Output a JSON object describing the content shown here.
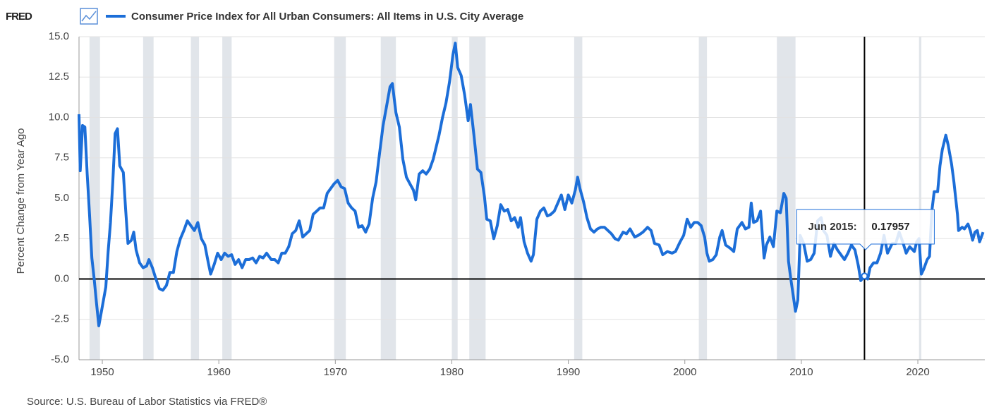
{
  "brand": "FRED",
  "chart_data": {
    "type": "line",
    "title": "Consumer Price Index for All Urban Consumers: All Items in U.S. City Average",
    "y_label": "Percent Change from Year Ago",
    "source": "Source: U.S. Bureau of Labor Statistics via FRED®",
    "xlim": [
      1948.0,
      2025.75
    ],
    "ylim": [
      -5,
      15
    ],
    "xticks": [
      1950,
      1960,
      1970,
      1980,
      1990,
      2000,
      2010,
      2020
    ],
    "yticks": [
      {
        "value": 15,
        "label": "15.0"
      },
      {
        "value": 12.5,
        "label": "12.5"
      },
      {
        "value": 10,
        "label": "10.0"
      },
      {
        "value": 7.5,
        "label": "7.5"
      },
      {
        "value": 5,
        "label": "5.0"
      },
      {
        "value": 2.5,
        "label": "2.5"
      },
      {
        "value": 0,
        "label": "0.0"
      },
      {
        "value": -2.5,
        "label": "-2.5"
      },
      {
        "value": -5,
        "label": "-5.0"
      }
    ],
    "grid": true,
    "recessions": [
      [
        1948.9,
        1949.8
      ],
      [
        1953.5,
        1954.4
      ],
      [
        1957.6,
        1958.3
      ],
      [
        1960.3,
        1961.1
      ],
      [
        1969.9,
        1970.9
      ],
      [
        1973.9,
        1975.2
      ],
      [
        1980.0,
        1980.5
      ],
      [
        1981.5,
        1982.9
      ],
      [
        1990.5,
        1991.2
      ],
      [
        2001.2,
        2001.9
      ],
      [
        2007.9,
        2009.5
      ],
      [
        2020.1,
        2020.3
      ]
    ],
    "tooltip": {
      "label": "Jun 2015:",
      "x": 2015.42,
      "value": 0.17957
    },
    "series": [
      {
        "name": "Consumer Price Index for All Urban Consumers: All Items in U.S. City Average",
        "color": "#1c6ed8",
        "x": [
          1948.0,
          1948.1,
          1948.3,
          1948.5,
          1948.7,
          1948.9,
          1949.1,
          1949.3,
          1949.5,
          1949.7,
          1949.9,
          1950.1,
          1950.3,
          1950.5,
          1950.7,
          1950.9,
          1951.1,
          1951.3,
          1951.5,
          1951.8,
          1952.0,
          1952.2,
          1952.5,
          1952.7,
          1952.9,
          1953.2,
          1953.5,
          1953.8,
          1954.0,
          1954.3,
          1954.6,
          1954.9,
          1955.2,
          1955.5,
          1955.8,
          1956.1,
          1956.4,
          1956.7,
          1957.0,
          1957.3,
          1957.6,
          1957.9,
          1958.2,
          1958.5,
          1958.8,
          1959.1,
          1959.3,
          1959.6,
          1959.9,
          1960.2,
          1960.5,
          1960.8,
          1961.1,
          1961.4,
          1961.7,
          1962.0,
          1962.3,
          1962.6,
          1962.9,
          1963.2,
          1963.5,
          1963.8,
          1964.1,
          1964.5,
          1964.8,
          1965.1,
          1965.4,
          1965.7,
          1966.0,
          1966.3,
          1966.6,
          1966.9,
          1967.2,
          1967.5,
          1967.8,
          1968.1,
          1968.4,
          1968.7,
          1969.0,
          1969.3,
          1969.6,
          1969.9,
          1970.2,
          1970.5,
          1970.8,
          1971.1,
          1971.4,
          1971.7,
          1972.0,
          1972.3,
          1972.6,
          1972.9,
          1973.2,
          1973.5,
          1973.8,
          1974.1,
          1974.4,
          1974.7,
          1974.9,
          1975.2,
          1975.5,
          1975.8,
          1976.1,
          1976.4,
          1976.7,
          1976.9,
          1977.2,
          1977.5,
          1977.8,
          1978.1,
          1978.4,
          1978.7,
          1978.9,
          1979.2,
          1979.5,
          1979.8,
          1980.1,
          1980.3,
          1980.5,
          1980.8,
          1981.1,
          1981.4,
          1981.6,
          1981.9,
          1982.2,
          1982.5,
          1982.8,
          1983.0,
          1983.3,
          1983.6,
          1983.9,
          1984.2,
          1984.5,
          1984.8,
          1985.1,
          1985.4,
          1985.7,
          1985.9,
          1986.2,
          1986.5,
          1986.8,
          1987.0,
          1987.3,
          1987.6,
          1987.9,
          1988.2,
          1988.5,
          1988.8,
          1989.1,
          1989.4,
          1989.7,
          1990.0,
          1990.3,
          1990.6,
          1990.8,
          1991.0,
          1991.3,
          1991.6,
          1991.9,
          1992.2,
          1992.5,
          1992.8,
          1993.1,
          1993.4,
          1993.7,
          1994.0,
          1994.3,
          1994.7,
          1995.0,
          1995.3,
          1995.7,
          1996.0,
          1996.4,
          1996.8,
          1997.1,
          1997.4,
          1997.8,
          1998.1,
          1998.5,
          1998.9,
          1999.2,
          1999.6,
          1999.9,
          2000.2,
          2000.5,
          2000.8,
          2001.1,
          2001.4,
          2001.7,
          2001.9,
          2002.1,
          2002.4,
          2002.7,
          2003.0,
          2003.2,
          2003.5,
          2003.9,
          2004.2,
          2004.5,
          2004.9,
          2005.2,
          2005.5,
          2005.7,
          2005.9,
          2006.2,
          2006.5,
          2006.8,
          2007.0,
          2007.3,
          2007.6,
          2007.9,
          2008.2,
          2008.5,
          2008.7,
          2008.9,
          2009.1,
          2009.3,
          2009.5,
          2009.7,
          2009.9,
          2010.2,
          2010.5,
          2010.8,
          2011.1,
          2011.4,
          2011.7,
          2011.9,
          2012.2,
          2012.5,
          2012.8,
          2013.1,
          2013.4,
          2013.7,
          2014.0,
          2014.3,
          2014.6,
          2014.9,
          2015.1,
          2015.42,
          2015.7,
          2015.9,
          2016.2,
          2016.5,
          2016.8,
          2017.1,
          2017.4,
          2017.8,
          2018.1,
          2018.4,
          2018.7,
          2019.0,
          2019.3,
          2019.7,
          2019.9,
          2020.1,
          2020.3,
          2020.5,
          2020.8,
          2021.0,
          2021.2,
          2021.4,
          2021.7,
          2021.9,
          2022.1,
          2022.4,
          2022.6,
          2022.9,
          2023.1,
          2023.4,
          2023.5,
          2023.8,
          2024.0,
          2024.3,
          2024.5,
          2024.7,
          2024.9,
          2025.1,
          2025.3,
          2025.5,
          2025.6
        ],
        "values": [
          10.2,
          6.7,
          9.5,
          9.4,
          6.5,
          4.0,
          1.3,
          0.0,
          -1.5,
          -2.9,
          -2.1,
          -1.3,
          -0.5,
          1.7,
          3.5,
          6.0,
          9.0,
          9.3,
          7.0,
          6.6,
          4.3,
          2.2,
          2.4,
          2.9,
          1.8,
          1.0,
          0.7,
          0.8,
          1.2,
          0.7,
          0.0,
          -0.6,
          -0.7,
          -0.4,
          0.4,
          0.4,
          1.7,
          2.5,
          3.0,
          3.6,
          3.3,
          3.0,
          3.5,
          2.5,
          2.1,
          1.0,
          0.3,
          0.9,
          1.6,
          1.2,
          1.6,
          1.4,
          1.5,
          0.9,
          1.2,
          0.7,
          1.2,
          1.2,
          1.3,
          1.0,
          1.4,
          1.3,
          1.6,
          1.2,
          1.2,
          1.0,
          1.6,
          1.6,
          2.0,
          2.8,
          3.0,
          3.6,
          2.6,
          2.8,
          3.0,
          4.0,
          4.2,
          4.4,
          4.4,
          5.3,
          5.6,
          5.9,
          6.1,
          5.7,
          5.6,
          4.7,
          4.4,
          4.2,
          3.2,
          3.3,
          2.9,
          3.4,
          5.0,
          6.0,
          7.8,
          9.5,
          10.7,
          11.9,
          12.1,
          10.3,
          9.4,
          7.4,
          6.3,
          5.9,
          5.5,
          4.9,
          6.5,
          6.7,
          6.5,
          6.8,
          7.4,
          8.3,
          8.9,
          10.0,
          10.9,
          12.2,
          13.9,
          14.6,
          13.1,
          12.6,
          11.4,
          9.8,
          10.8,
          8.9,
          6.8,
          6.6,
          5.1,
          3.7,
          3.6,
          2.5,
          3.3,
          4.6,
          4.2,
          4.3,
          3.6,
          3.8,
          3.2,
          3.8,
          2.3,
          1.6,
          1.1,
          1.5,
          3.7,
          4.2,
          4.4,
          3.9,
          4.0,
          4.2,
          4.7,
          5.2,
          4.3,
          5.2,
          4.7,
          5.5,
          6.3,
          5.6,
          4.8,
          3.8,
          3.1,
          2.9,
          3.1,
          3.2,
          3.2,
          3.0,
          2.8,
          2.5,
          2.4,
          2.9,
          2.8,
          3.1,
          2.6,
          2.7,
          2.9,
          3.2,
          3.0,
          2.2,
          2.1,
          1.5,
          1.7,
          1.6,
          1.7,
          2.3,
          2.7,
          3.7,
          3.2,
          3.5,
          3.5,
          3.3,
          2.6,
          1.6,
          1.1,
          1.2,
          1.5,
          2.6,
          3.0,
          2.1,
          1.9,
          1.7,
          3.1,
          3.5,
          3.1,
          3.2,
          4.7,
          3.5,
          3.6,
          4.2,
          1.3,
          2.1,
          2.6,
          2.0,
          4.2,
          4.1,
          5.3,
          5.0,
          1.1,
          0.0,
          -1.0,
          -2.0,
          -1.3,
          2.7,
          2.2,
          1.1,
          1.2,
          1.6,
          3.6,
          3.8,
          3.0,
          2.7,
          1.4,
          2.2,
          1.8,
          1.5,
          1.2,
          1.6,
          2.1,
          1.8,
          0.8,
          -0.1,
          0.17957,
          0.0,
          0.7,
          1.0,
          1.0,
          1.6,
          2.7,
          1.6,
          2.2,
          2.2,
          2.9,
          2.3,
          1.6,
          2.0,
          1.7,
          2.3,
          2.5,
          0.3,
          0.6,
          1.2,
          1.4,
          4.2,
          5.4,
          5.4,
          7.0,
          8.0,
          8.9,
          8.3,
          7.1,
          6.0,
          4.0,
          3.0,
          3.2,
          3.1,
          3.4,
          3.0,
          2.4,
          2.9,
          3.0,
          2.3,
          2.7,
          2.9
        ]
      }
    ]
  }
}
